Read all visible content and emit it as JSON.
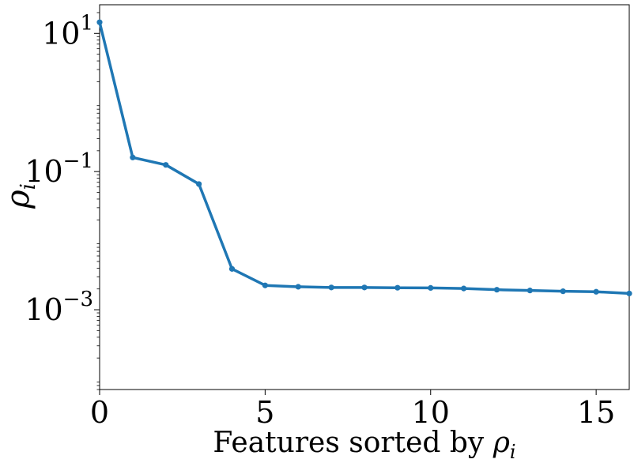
{
  "chart_data": {
    "type": "line",
    "title": "",
    "xlabel_parts": [
      "Features sorted by ",
      "ρ",
      "i"
    ],
    "ylabel_parts": [
      "ρ",
      "i"
    ],
    "x": [
      0,
      1,
      2,
      3,
      4,
      5,
      6,
      7,
      8,
      9,
      10,
      11,
      12,
      13,
      14,
      15,
      16
    ],
    "series": [
      {
        "values": [
          14.5,
          0.16,
          0.125,
          0.066,
          0.0039,
          0.00225,
          0.00215,
          0.0021,
          0.0021,
          0.00208,
          0.00207,
          0.00203,
          0.00195,
          0.0019,
          0.00185,
          0.00182,
          0.00172
        ],
        "color": "#1f77b4"
      }
    ],
    "xlim": [
      0,
      16
    ],
    "ylim": [
      7e-05,
      26
    ],
    "yscale": "log",
    "xticks": [
      0,
      5,
      10,
      15
    ],
    "xtick_labels": [
      "0",
      "5",
      "10",
      "15"
    ],
    "yticks": [
      10,
      0.1,
      0.001
    ],
    "ytick_labels": [
      {
        "base": "10",
        "exp": "1"
      },
      {
        "base": "10",
        "exp": "−1"
      },
      {
        "base": "10",
        "exp": "−3"
      }
    ],
    "grid": false,
    "legend": "none"
  }
}
